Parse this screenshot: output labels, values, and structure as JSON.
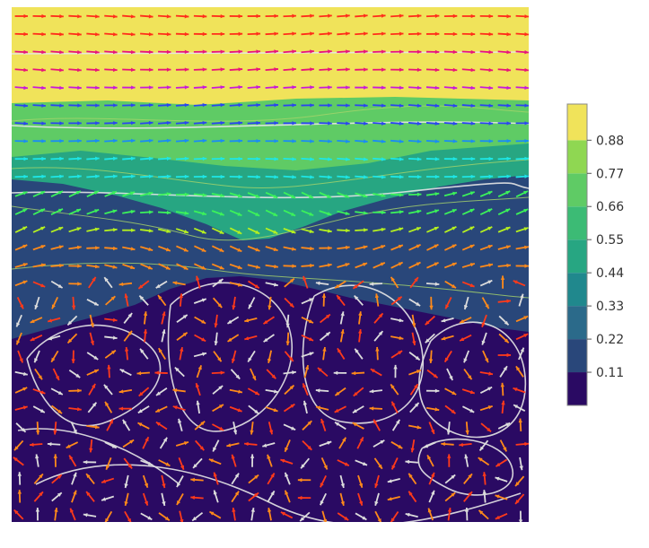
{
  "chart_data": {
    "type": "heatmap",
    "title": "",
    "xlabel": "",
    "ylabel": "",
    "colorscale": "viridis",
    "colorbar": {
      "ticks": [
        0.11,
        0.22,
        0.33,
        0.44,
        0.55,
        0.66,
        0.77,
        0.88
      ],
      "tick_labels": [
        "0.11",
        "0.22",
        "0.33",
        "0.44",
        "0.55",
        "0.66",
        "0.77",
        "0.88"
      ],
      "levels": [
        0,
        0.11,
        0.22,
        0.33,
        0.44,
        0.55,
        0.66,
        0.77,
        0.88,
        1.0
      ],
      "level_colors": [
        "#2a0a63",
        "#29477a",
        "#2b6a8a",
        "#20888d",
        "#27a682",
        "#3cbb75",
        "#5fcb65",
        "#8fd752",
        "#f0e35a"
      ]
    },
    "field_layers": [
      {
        "name": "top",
        "value": 0.95
      },
      {
        "name": "upper",
        "value": 0.72
      },
      {
        "name": "middle",
        "value": 0.5
      },
      {
        "name": "band",
        "value": 0.18
      },
      {
        "name": "bottom",
        "value": 0.03
      }
    ],
    "vectors": {
      "rows": 29,
      "cols": 29,
      "streamline_color": "#e6e6e6",
      "arrow_colors_by_row": [
        "#ff2d1a",
        "#e8147a",
        "#c81ad8",
        "#2a45f0",
        "#1a8cf5",
        "#1ee6e6",
        "#3cf25a",
        "#b5f020",
        "#ff8a1a",
        "#ff3a1a"
      ],
      "legend": "none",
      "grid": false
    }
  }
}
